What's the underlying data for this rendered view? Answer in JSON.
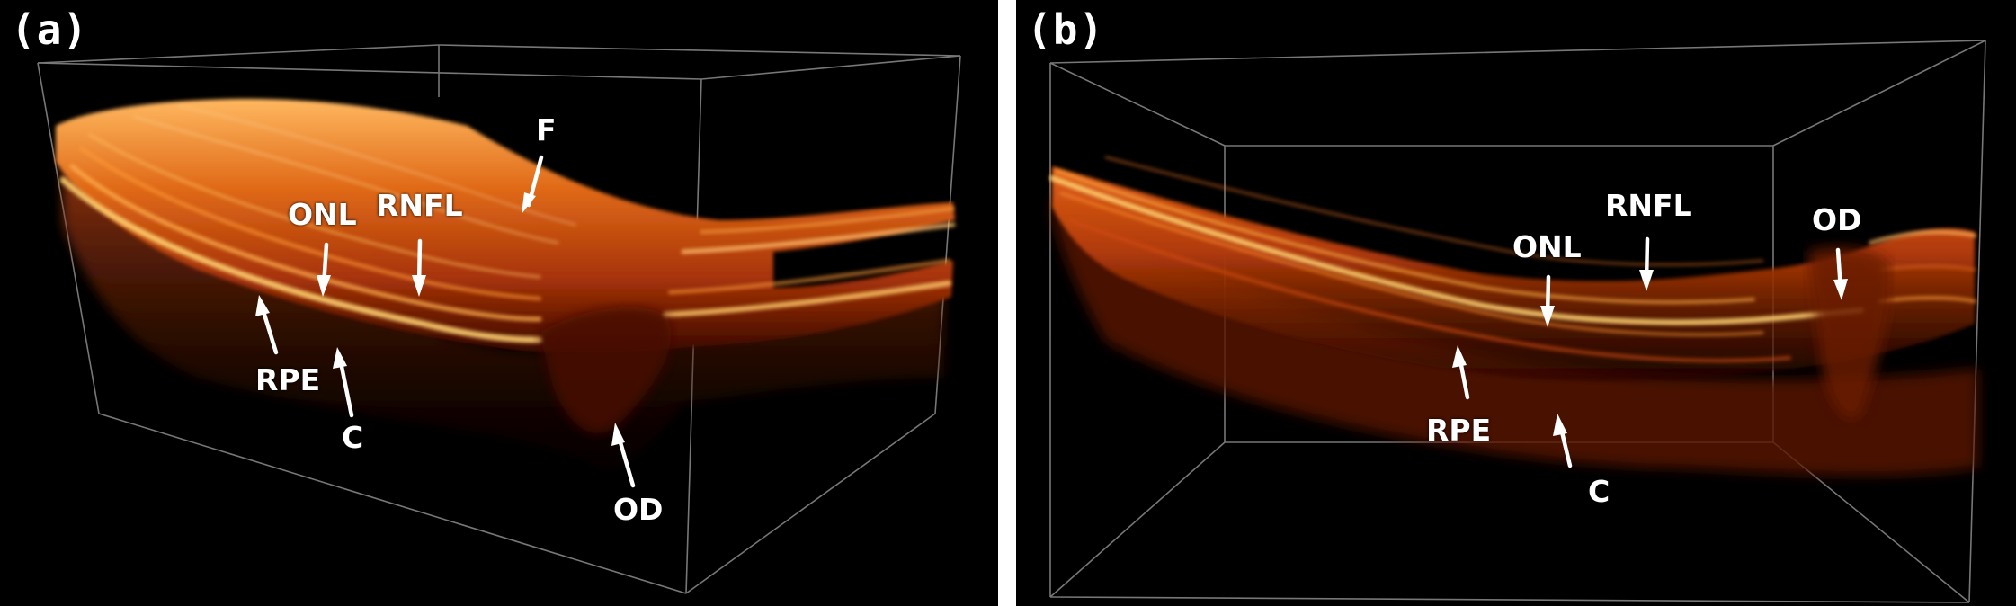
{
  "panel_a": {
    "label": "(a)",
    "annotations": {
      "F": "F",
      "ONL": "ONL",
      "RNFL": "RNFL",
      "RPE": "RPE",
      "C": "C",
      "OD": "OD"
    }
  },
  "panel_b": {
    "label": "(b)",
    "annotations": {
      "RNFL": "RNFL",
      "OD": "OD",
      "ONL": "ONL",
      "RPE": "RPE",
      "C": "C"
    }
  },
  "colors": {
    "background": "#000000",
    "tissue_bright": "#ffd070",
    "tissue_mid": "#e06010",
    "tissue_dark": "#5a1000",
    "box_edge": "#9a9a9a",
    "arrow": "#ffffff"
  }
}
